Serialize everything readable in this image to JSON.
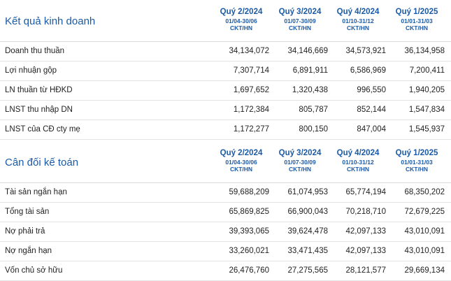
{
  "income": {
    "title": "Kết quả kinh doanh",
    "periods": [
      {
        "quarter": "Quý 2/2024",
        "range": "01/04-30/06",
        "unit": "CKT/HN"
      },
      {
        "quarter": "Quý 3/2024",
        "range": "01/07-30/09",
        "unit": "CKT/HN"
      },
      {
        "quarter": "Quý 4/2024",
        "range": "01/10-31/12",
        "unit": "CKT/HN"
      },
      {
        "quarter": "Quý 1/2025",
        "range": "01/01-31/03",
        "unit": "CKT/HN"
      }
    ],
    "rows": [
      {
        "label": "Doanh thu thuần",
        "values": [
          "34,134,072",
          "34,146,669",
          "34,573,921",
          "36,134,958"
        ]
      },
      {
        "label": "Lợi nhuận gộp",
        "values": [
          "7,307,714",
          "6,891,911",
          "6,586,969",
          "7,200,411"
        ]
      },
      {
        "label": "LN thuần từ HĐKD",
        "values": [
          "1,697,652",
          "1,320,438",
          "996,550",
          "1,940,205"
        ]
      },
      {
        "label": "LNST thu nhập DN",
        "values": [
          "1,172,384",
          "805,787",
          "852,144",
          "1,547,834"
        ]
      },
      {
        "label": "LNST của CĐ cty mẹ",
        "values": [
          "1,172,277",
          "800,150",
          "847,004",
          "1,545,937"
        ]
      }
    ]
  },
  "balance": {
    "title": "Cân đối kế toán",
    "periods": [
      {
        "quarter": "Quý 2/2024",
        "range": "01/04-30/06",
        "unit": "CKT/HN"
      },
      {
        "quarter": "Quý 3/2024",
        "range": "01/07-30/09",
        "unit": "CKT/HN"
      },
      {
        "quarter": "Quý 4/2024",
        "range": "01/10-31/12",
        "unit": "CKT/HN"
      },
      {
        "quarter": "Quý 1/2025",
        "range": "01/01-31/03",
        "unit": "CKT/HN"
      }
    ],
    "rows": [
      {
        "label": "Tài sản ngắn hạn",
        "values": [
          "59,688,209",
          "61,074,953",
          "65,774,194",
          "68,350,202"
        ]
      },
      {
        "label": "Tổng tài sản",
        "values": [
          "65,869,825",
          "66,900,043",
          "70,218,710",
          "72,679,225"
        ]
      },
      {
        "label": "Nợ phải trả",
        "values": [
          "39,393,065",
          "39,624,478",
          "42,097,133",
          "43,010,091"
        ]
      },
      {
        "label": "Nợ ngắn hạn",
        "values": [
          "33,260,021",
          "33,471,435",
          "42,097,133",
          "43,010,091"
        ]
      },
      {
        "label": "Vốn chủ sở hữu",
        "values": [
          "26,476,760",
          "27,275,565",
          "28,121,577",
          "29,669,134"
        ]
      }
    ]
  }
}
